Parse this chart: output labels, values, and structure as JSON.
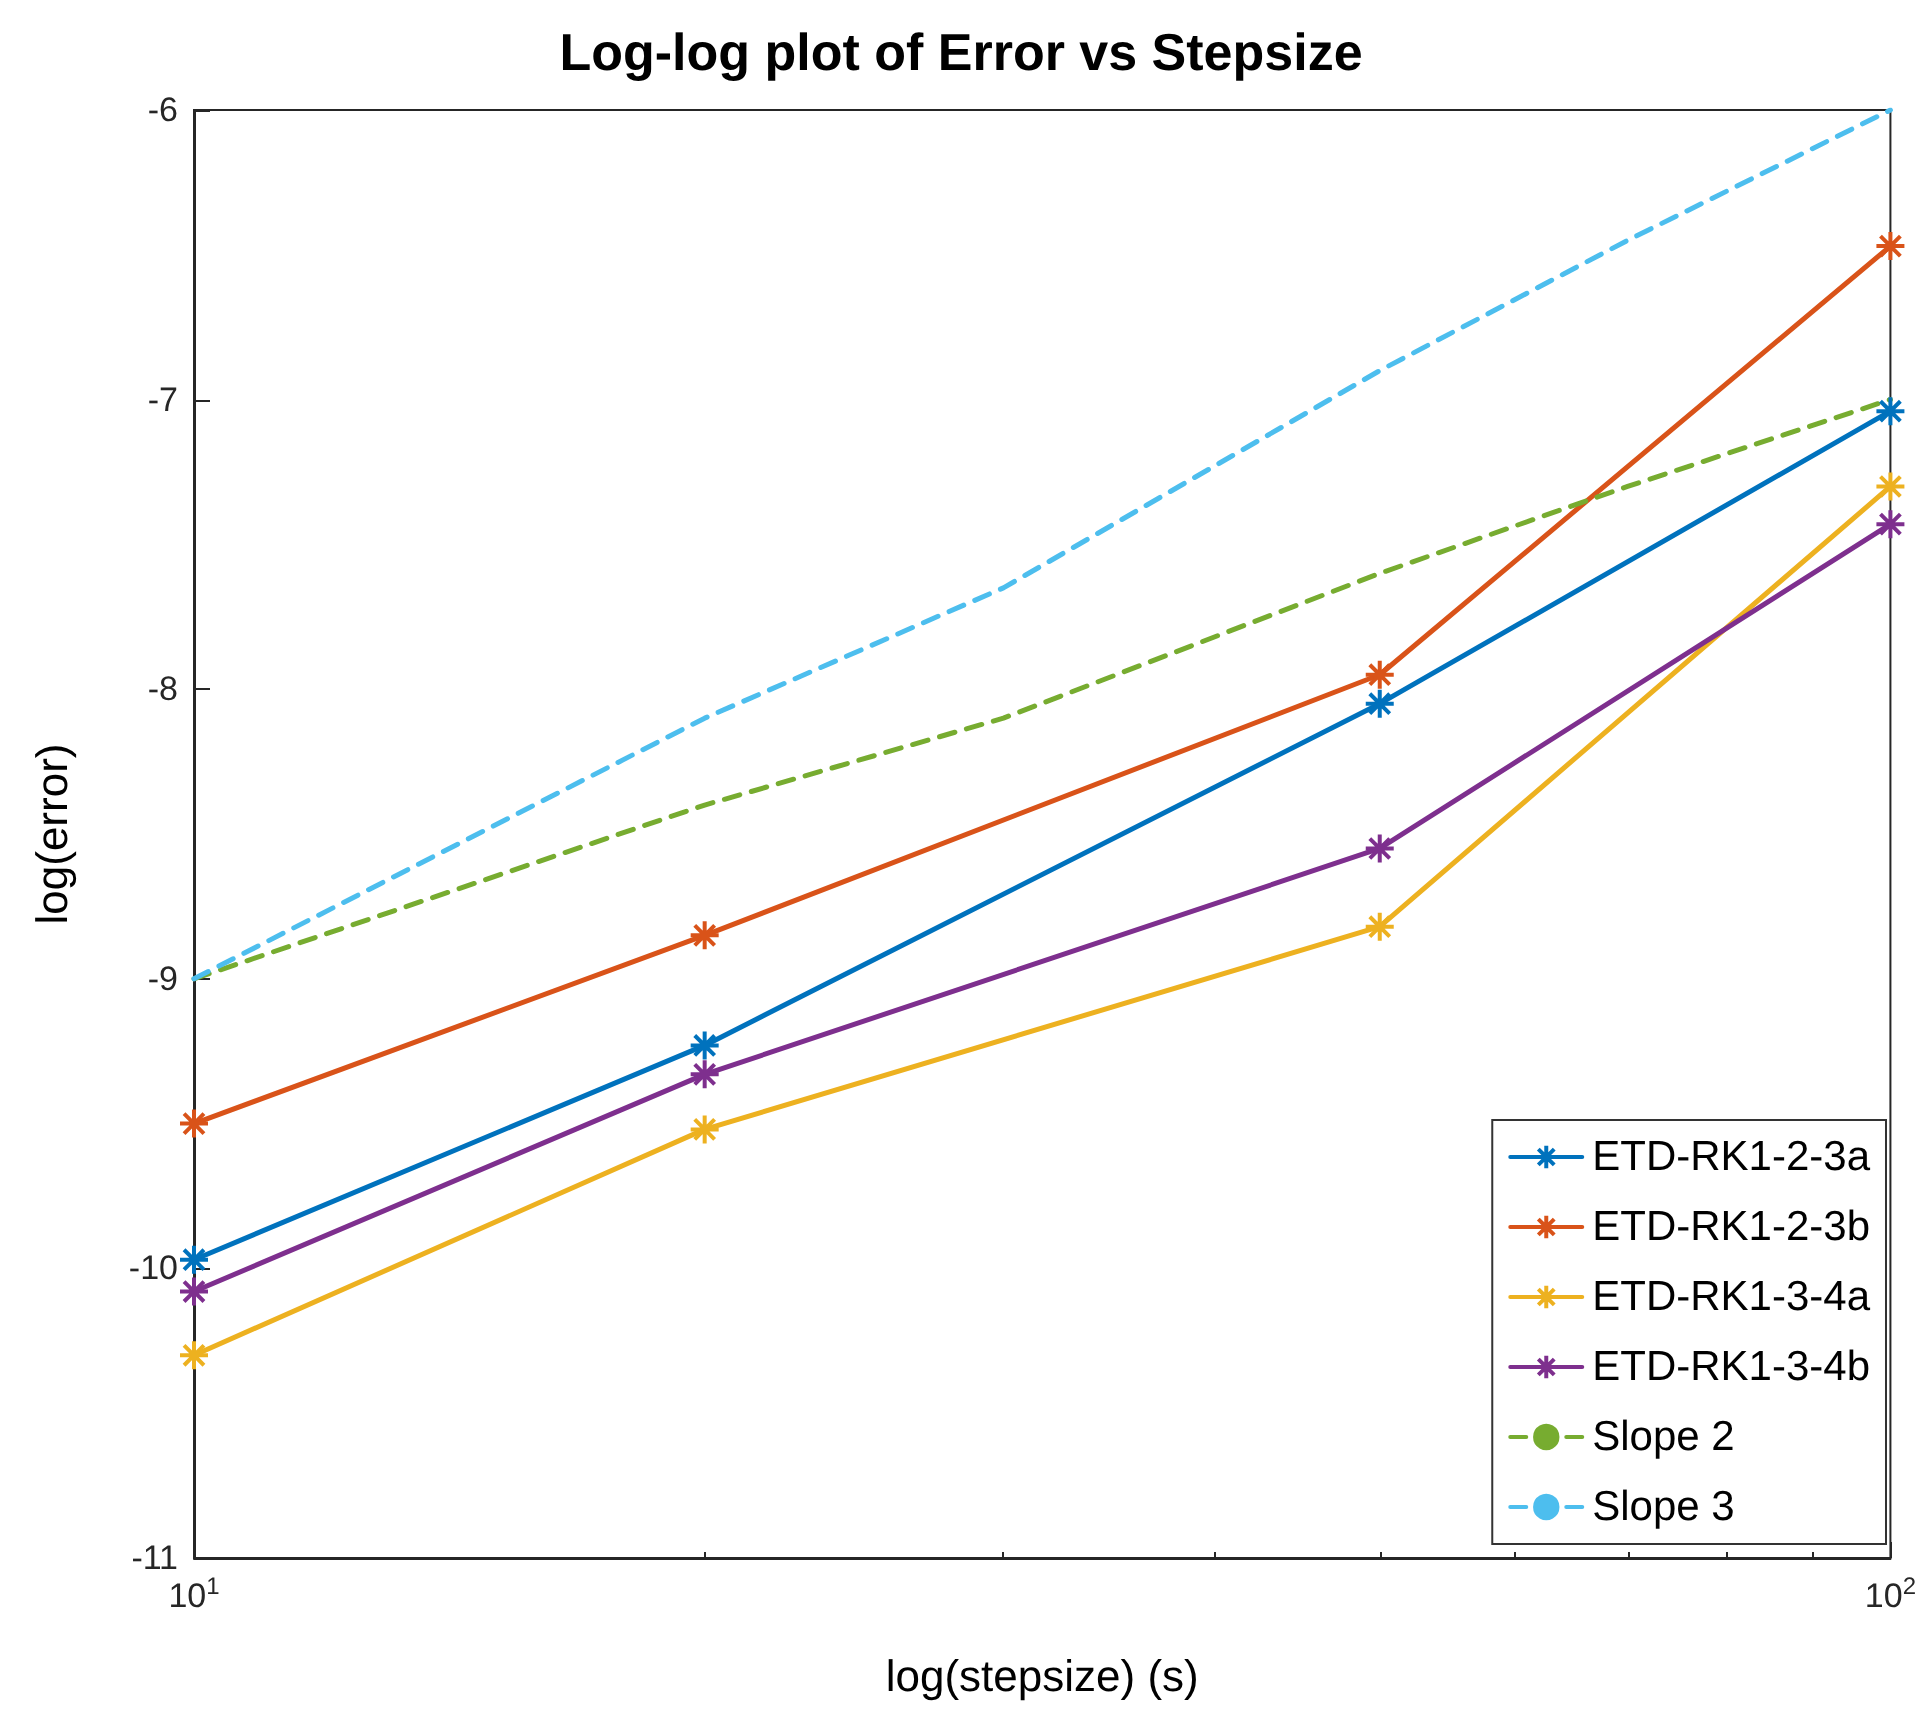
{
  "chart_data": {
    "type": "line",
    "title": "Log-log plot of Error vs Stepsize",
    "xlabel": "log(stepsize) (s)",
    "ylabel": "log(error)",
    "log": "x",
    "xlim": [
      10,
      100
    ],
    "xticks": [
      {
        "value": 10,
        "label": "10$^{1}$"
      },
      {
        "value": 100,
        "label": "10$^{2}$"
      }
    ],
    "ylim": [
      -11,
      -6
    ],
    "yticks": [
      -11,
      -10,
      -9,
      -8,
      -7,
      -6
    ],
    "grid": false,
    "legend": "bottom right",
    "series": [
      {
        "name": "ETD-RK1-2-3a",
        "color": "#0072bd",
        "x": [
          10,
          20,
          50,
          100
        ],
        "values": [
          -9.97,
          -9.23,
          -8.05,
          -7.04
        ],
        "marker": "cross",
        "line_style": "solid"
      },
      {
        "name": "ETD-RK1-2-3b",
        "color": "#d95319",
        "x": [
          10,
          20,
          50,
          100
        ],
        "values": [
          -9.5,
          -8.85,
          -7.95,
          -6.47
        ],
        "marker": "cross",
        "line_style": "solid"
      },
      {
        "name": "ETD-RK1-3-4a",
        "color": "#edb120",
        "x": [
          10,
          20,
          50,
          100
        ],
        "values": [
          -10.3,
          -9.52,
          -8.82,
          -7.3
        ],
        "marker": "cross",
        "line_style": "solid"
      },
      {
        "name": "ETD-RK1-3-4b",
        "color": "#7e2f8e",
        "x": [
          10,
          20,
          50,
          100
        ],
        "values": [
          -10.08,
          -9.33,
          -8.55,
          -7.43
        ],
        "marker": "cross",
        "line_style": "solid"
      },
      {
        "name": "Slope 2",
        "color": "#77ac30",
        "x": [
          10,
          20,
          30,
          50,
          70,
          100
        ],
        "values": [
          -9,
          -8.4,
          -8.1,
          -7.6,
          -7.3,
          -7
        ],
        "marker": "none",
        "line_style": "dashed"
      },
      {
        "name": "Slope 3",
        "color": "#4dbeee",
        "x": [
          10,
          20,
          30,
          50,
          70,
          100
        ],
        "values": [
          -9,
          -8.1,
          -7.65,
          -6.9,
          -6.45,
          -6
        ],
        "marker": "none",
        "line_style": "dashed"
      }
    ]
  }
}
